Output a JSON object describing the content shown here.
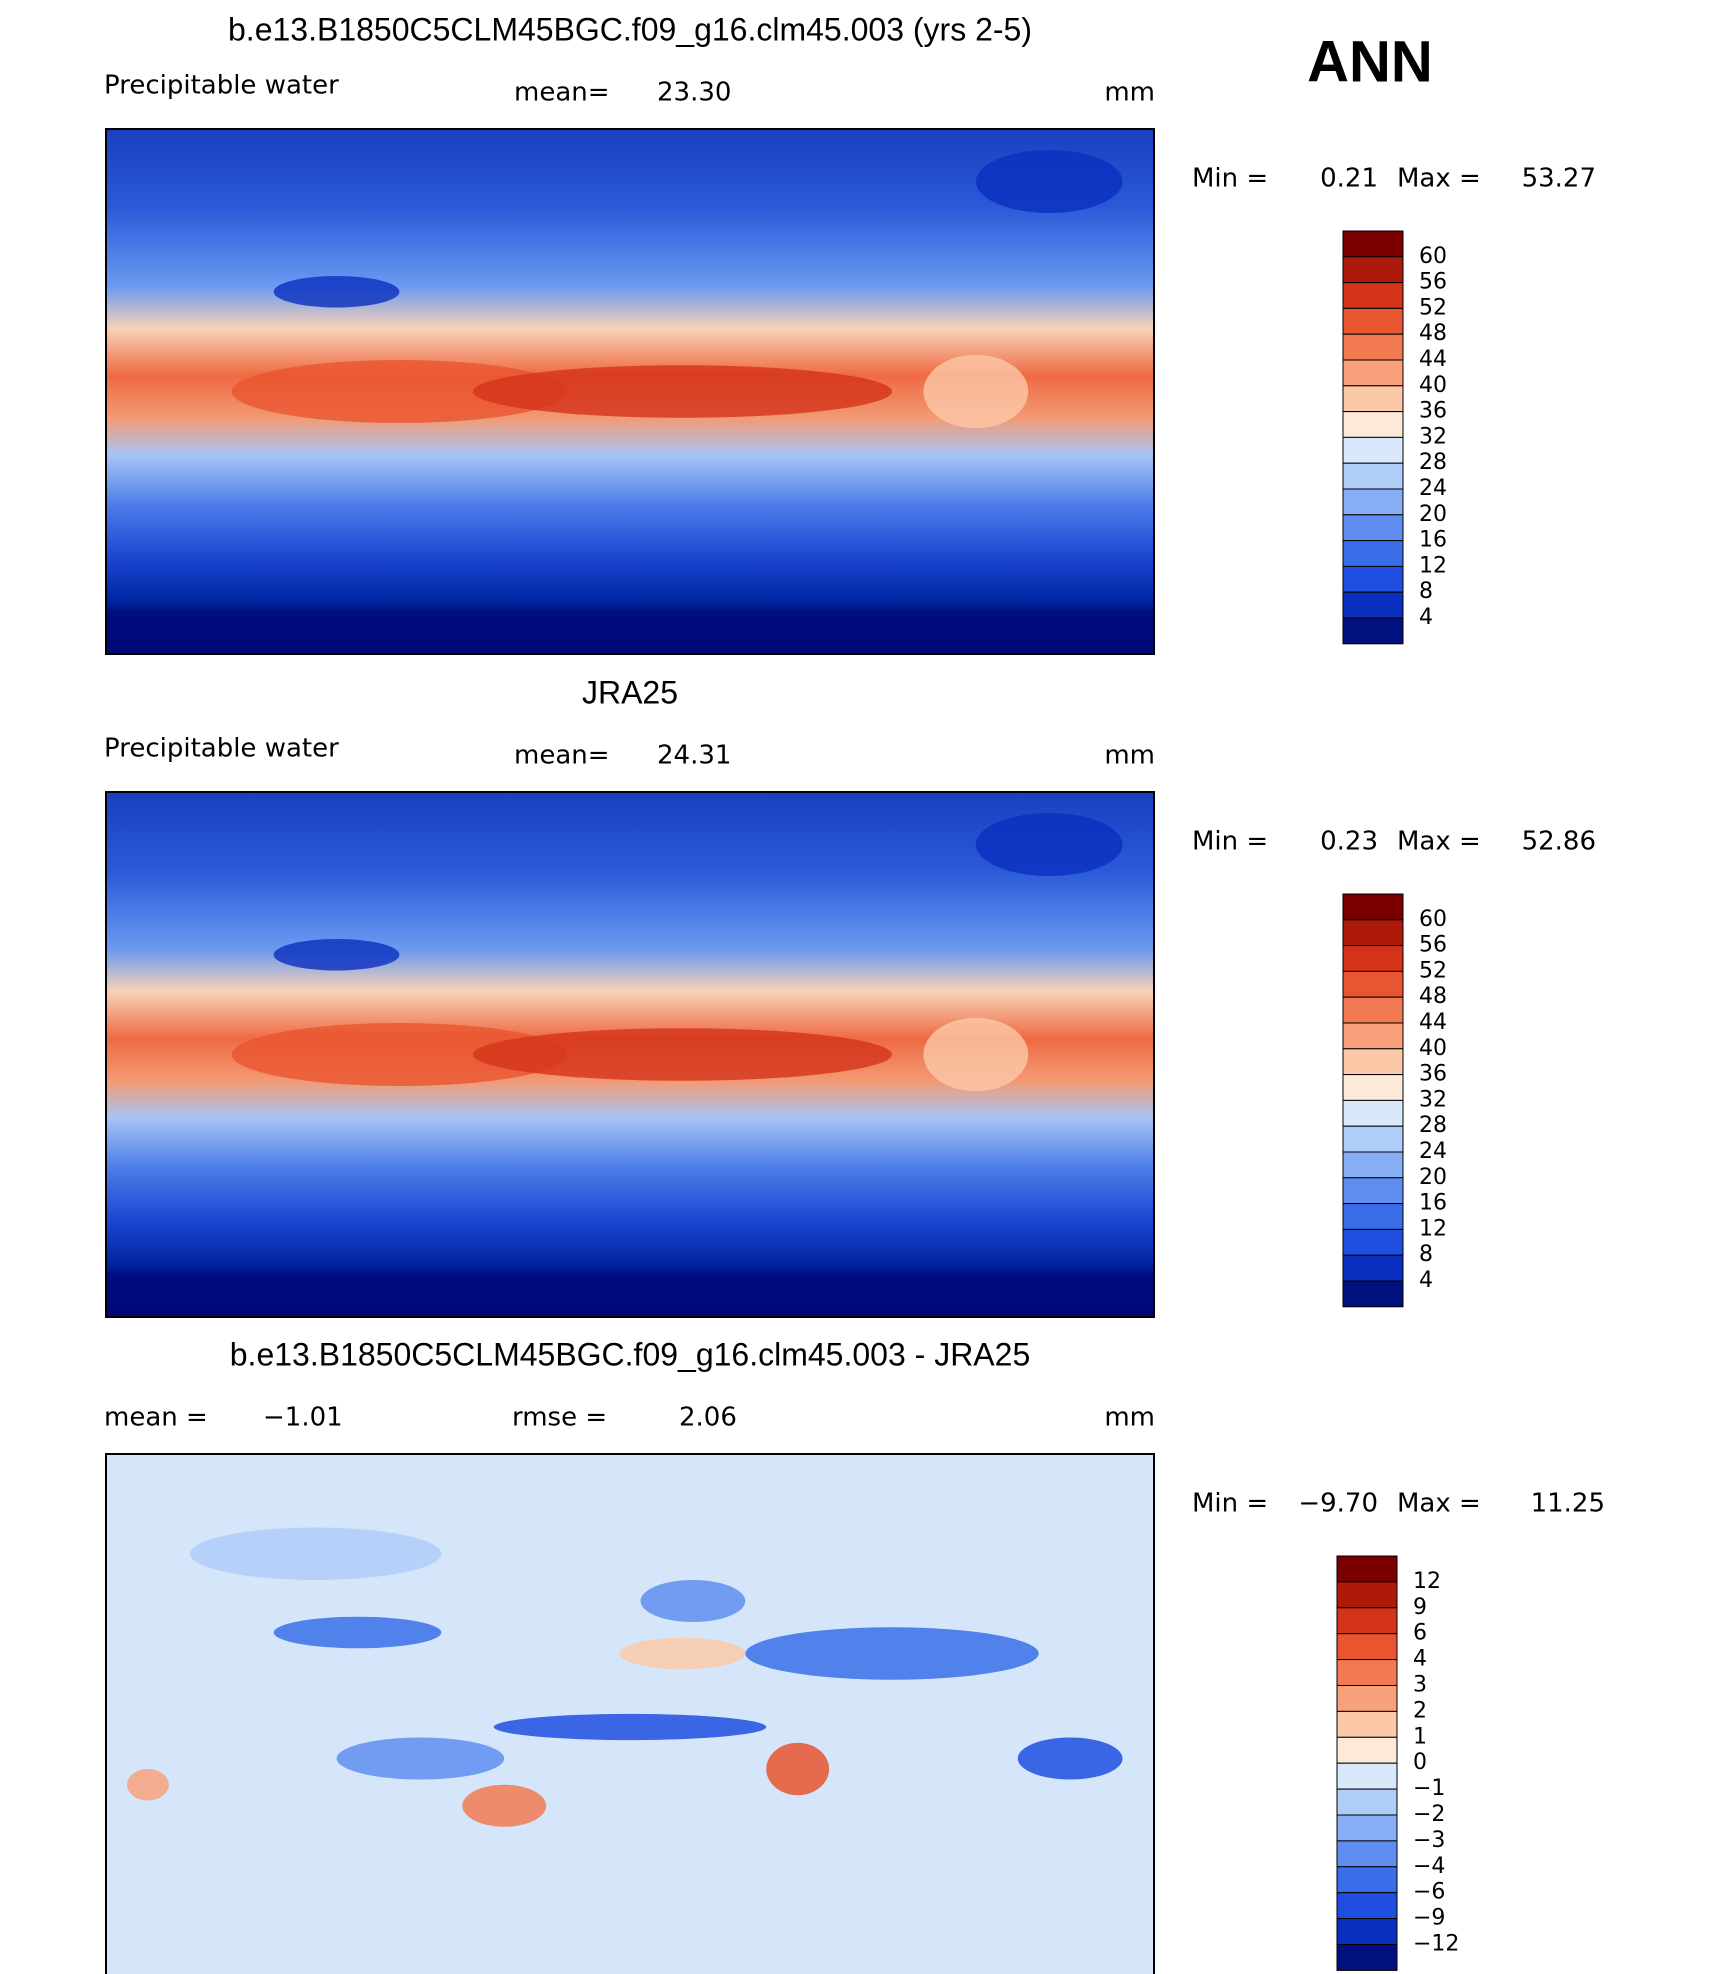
{
  "header": {
    "season": "ANN"
  },
  "panels": [
    {
      "title": "b.e13.B1850C5CLM45BGC.f09_g16.clm45.003 (yrs 2-5)",
      "variable": "Precipitable  water",
      "mean_label": "mean=",
      "mean": "23.30",
      "units": "mm",
      "min_label": "Min =",
      "min": "0.21",
      "max_label": "Max =",
      "max": "53.27",
      "levels": [
        "60",
        "56",
        "52",
        "48",
        "44",
        "40",
        "36",
        "32",
        "28",
        "24",
        "20",
        "16",
        "12",
        "8",
        "4"
      ]
    },
    {
      "title": "JRA25",
      "variable": "Precipitable  water",
      "mean_label": "mean=",
      "mean": "24.31",
      "units": "mm",
      "min_label": "Min =",
      "min": "0.23",
      "max_label": "Max =",
      "max": "52.86",
      "levels": [
        "60",
        "56",
        "52",
        "48",
        "44",
        "40",
        "36",
        "32",
        "28",
        "24",
        "20",
        "16",
        "12",
        "8",
        "4"
      ]
    },
    {
      "title": "b.e13.B1850C5CLM45BGC.f09_g16.clm45.003 - JRA25",
      "mean_label": "mean =",
      "mean": "−1.01",
      "rmse_label": "rmse =",
      "rmse": "2.06",
      "units": "mm",
      "min_label": "Min =",
      "min": "−9.70",
      "max_label": "Max =",
      "max": "11.25",
      "levels": [
        "12",
        "9",
        "6",
        "4",
        "3",
        "2",
        "1",
        "0",
        "−1",
        "−2",
        "−3",
        "−4",
        "−6",
        "−9",
        "−12"
      ]
    }
  ]
}
